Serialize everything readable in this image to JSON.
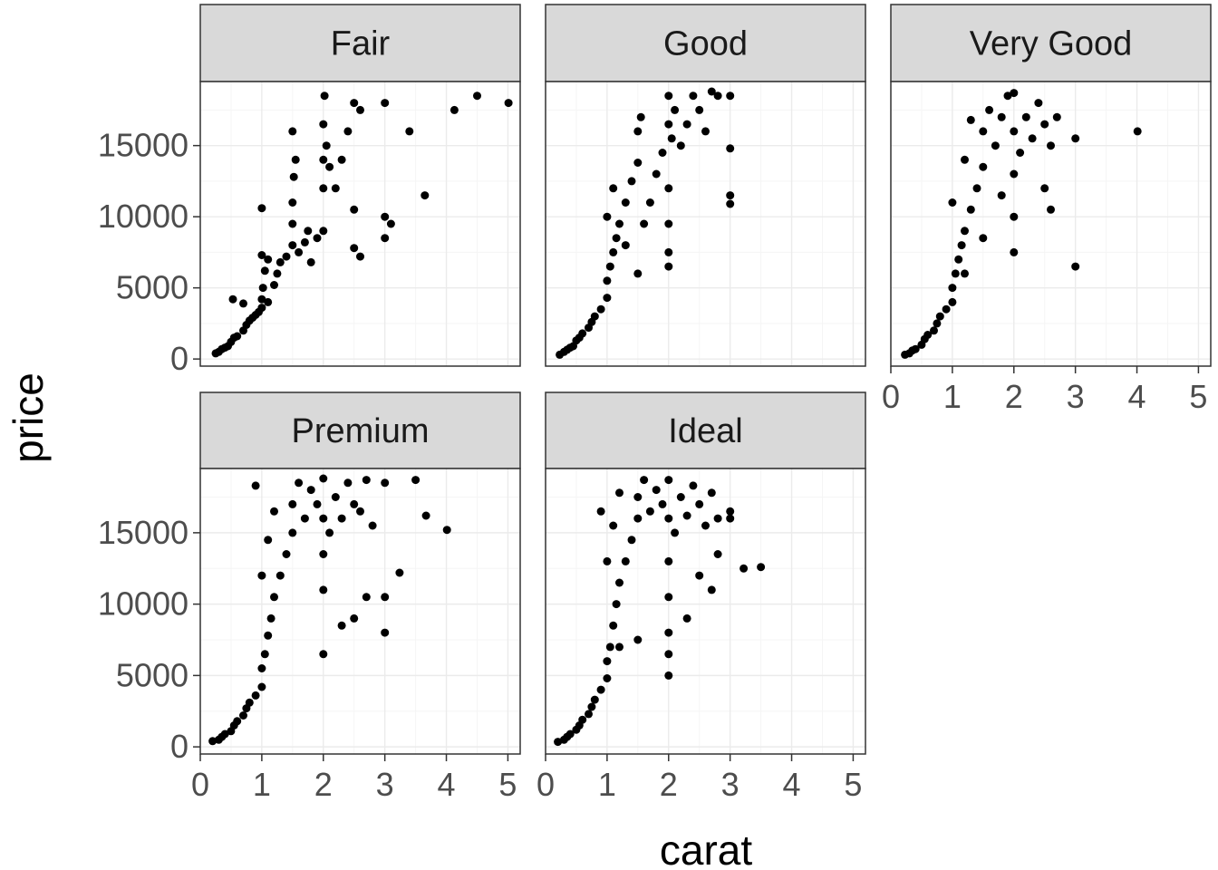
{
  "chart_data": {
    "type": "scatter",
    "xlabel": "carat",
    "ylabel": "price",
    "xlim": [
      0,
      5.2
    ],
    "ylim": [
      -500,
      19500
    ],
    "x_ticks": [
      0,
      1,
      2,
      3,
      4,
      5
    ],
    "y_ticks": [
      0,
      5000,
      10000,
      15000
    ],
    "y_tick_labels": [
      "0",
      "5000",
      "10000",
      "15000"
    ],
    "x_tick_labels": [
      "0",
      "1",
      "2",
      "3",
      "4",
      "5"
    ],
    "grid": true,
    "colors": {
      "point": "#000000",
      "strip_fill": "#d9d9d9",
      "panel_border": "#333333",
      "grid_major": "#ebebeb",
      "grid_minor": "#f5f5f5"
    },
    "panels": [
      {
        "name": "Fair",
        "points": [
          [
            0.25,
            400
          ],
          [
            0.3,
            500
          ],
          [
            0.35,
            700
          ],
          [
            0.4,
            800
          ],
          [
            0.45,
            900
          ],
          [
            0.5,
            1200
          ],
          [
            0.55,
            1500
          ],
          [
            0.6,
            1600
          ],
          [
            0.7,
            2000
          ],
          [
            0.75,
            2400
          ],
          [
            0.8,
            2700
          ],
          [
            0.85,
            2900
          ],
          [
            0.9,
            3100
          ],
          [
            0.95,
            3300
          ],
          [
            1.0,
            3600
          ],
          [
            1.0,
            4200
          ],
          [
            1.02,
            5000
          ],
          [
            1.05,
            6200
          ],
          [
            1.1,
            7000
          ],
          [
            1.1,
            4000
          ],
          [
            1.2,
            5200
          ],
          [
            1.25,
            6000
          ],
          [
            1.3,
            6800
          ],
          [
            1.4,
            7200
          ],
          [
            1.5,
            8000
          ],
          [
            1.5,
            9500
          ],
          [
            1.5,
            11000
          ],
          [
            1.52,
            12800
          ],
          [
            1.55,
            14000
          ],
          [
            1.5,
            16000
          ],
          [
            1.6,
            7500
          ],
          [
            1.7,
            8200
          ],
          [
            1.75,
            9000
          ],
          [
            1.8,
            6800
          ],
          [
            1.9,
            8500
          ],
          [
            2.0,
            9000
          ],
          [
            2.0,
            12000
          ],
          [
            2.0,
            14000
          ],
          [
            2.0,
            16500
          ],
          [
            2.02,
            18500
          ],
          [
            2.05,
            15000
          ],
          [
            2.1,
            13500
          ],
          [
            2.2,
            12000
          ],
          [
            2.3,
            14000
          ],
          [
            2.4,
            16000
          ],
          [
            2.5,
            18000
          ],
          [
            2.5,
            10500
          ],
          [
            2.6,
            17500
          ],
          [
            3.0,
            18000
          ],
          [
            3.0,
            10000
          ],
          [
            3.1,
            9500
          ],
          [
            3.4,
            16000
          ],
          [
            3.65,
            11500
          ],
          [
            4.13,
            17500
          ],
          [
            4.5,
            18500
          ],
          [
            5.01,
            18000
          ],
          [
            0.53,
            4200
          ],
          [
            0.7,
            3900
          ],
          [
            1.0,
            10600
          ],
          [
            1.0,
            7300
          ],
          [
            2.5,
            7800
          ],
          [
            2.6,
            7200
          ],
          [
            3.0,
            8500
          ]
        ]
      },
      {
        "name": "Good",
        "points": [
          [
            0.23,
            300
          ],
          [
            0.3,
            500
          ],
          [
            0.35,
            650
          ],
          [
            0.4,
            800
          ],
          [
            0.45,
            900
          ],
          [
            0.5,
            1300
          ],
          [
            0.55,
            1500
          ],
          [
            0.6,
            1800
          ],
          [
            0.7,
            2200
          ],
          [
            0.75,
            2600
          ],
          [
            0.8,
            3000
          ],
          [
            0.9,
            3500
          ],
          [
            1.0,
            4300
          ],
          [
            1.0,
            5500
          ],
          [
            1.05,
            6500
          ],
          [
            1.1,
            7500
          ],
          [
            1.15,
            8500
          ],
          [
            1.2,
            9500
          ],
          [
            1.3,
            11000
          ],
          [
            1.4,
            12500
          ],
          [
            1.5,
            13800
          ],
          [
            1.5,
            16000
          ],
          [
            1.55,
            17000
          ],
          [
            1.0,
            10000
          ],
          [
            1.1,
            12000
          ],
          [
            1.3,
            8000
          ],
          [
            1.5,
            6000
          ],
          [
            1.6,
            9500
          ],
          [
            1.7,
            11000
          ],
          [
            1.8,
            13000
          ],
          [
            1.9,
            14500
          ],
          [
            2.0,
            16500
          ],
          [
            2.0,
            18500
          ],
          [
            2.0,
            12000
          ],
          [
            2.0,
            9500
          ],
          [
            2.05,
            15500
          ],
          [
            2.1,
            17500
          ],
          [
            2.2,
            15000
          ],
          [
            2.3,
            16500
          ],
          [
            2.4,
            18500
          ],
          [
            2.5,
            17500
          ],
          [
            2.6,
            16000
          ],
          [
            2.7,
            18800
          ],
          [
            2.8,
            18500
          ],
          [
            3.0,
            18500
          ],
          [
            3.0,
            14800
          ],
          [
            3.0,
            11500
          ],
          [
            3.0,
            10900
          ],
          [
            2.0,
            6500
          ],
          [
            2.0,
            7500
          ]
        ]
      },
      {
        "name": "Very Good",
        "points": [
          [
            0.23,
            300
          ],
          [
            0.3,
            400
          ],
          [
            0.35,
            600
          ],
          [
            0.4,
            700
          ],
          [
            0.5,
            1000
          ],
          [
            0.55,
            1400
          ],
          [
            0.6,
            1700
          ],
          [
            0.7,
            2000
          ],
          [
            0.75,
            2500
          ],
          [
            0.8,
            3000
          ],
          [
            0.9,
            3500
          ],
          [
            1.0,
            4000
          ],
          [
            1.0,
            5000
          ],
          [
            1.05,
            6000
          ],
          [
            1.1,
            7000
          ],
          [
            1.15,
            8000
          ],
          [
            1.2,
            9000
          ],
          [
            1.3,
            10500
          ],
          [
            1.4,
            12000
          ],
          [
            1.5,
            13500
          ],
          [
            1.5,
            16000
          ],
          [
            1.6,
            17500
          ],
          [
            1.7,
            15000
          ],
          [
            1.8,
            17000
          ],
          [
            1.9,
            18500
          ],
          [
            2.0,
            18700
          ],
          [
            2.0,
            16000
          ],
          [
            2.0,
            13000
          ],
          [
            2.0,
            10000
          ],
          [
            2.1,
            14500
          ],
          [
            2.2,
            17000
          ],
          [
            2.3,
            15500
          ],
          [
            2.4,
            18000
          ],
          [
            2.5,
            16500
          ],
          [
            2.6,
            15000
          ],
          [
            2.7,
            17000
          ],
          [
            2.5,
            12000
          ],
          [
            2.6,
            10500
          ],
          [
            3.0,
            15500
          ],
          [
            3.0,
            6500
          ],
          [
            4.01,
            16000
          ],
          [
            1.0,
            11000
          ],
          [
            1.2,
            14000
          ],
          [
            1.3,
            16800
          ],
          [
            1.8,
            11500
          ],
          [
            2.0,
            7500
          ],
          [
            1.5,
            8500
          ],
          [
            1.2,
            6000
          ]
        ]
      },
      {
        "name": "Premium",
        "points": [
          [
            0.2,
            400
          ],
          [
            0.3,
            500
          ],
          [
            0.35,
            700
          ],
          [
            0.4,
            900
          ],
          [
            0.5,
            1100
          ],
          [
            0.55,
            1500
          ],
          [
            0.6,
            1800
          ],
          [
            0.7,
            2200
          ],
          [
            0.75,
            2700
          ],
          [
            0.8,
            3100
          ],
          [
            0.9,
            3600
          ],
          [
            1.0,
            4200
          ],
          [
            1.0,
            5500
          ],
          [
            1.05,
            6500
          ],
          [
            1.1,
            7800
          ],
          [
            1.15,
            9000
          ],
          [
            1.2,
            10500
          ],
          [
            1.3,
            12000
          ],
          [
            1.4,
            13500
          ],
          [
            1.5,
            15000
          ],
          [
            1.5,
            17000
          ],
          [
            1.6,
            18500
          ],
          [
            1.7,
            16000
          ],
          [
            1.8,
            18000
          ],
          [
            1.9,
            17000
          ],
          [
            2.0,
            18800
          ],
          [
            2.0,
            16000
          ],
          [
            2.0,
            13500
          ],
          [
            2.0,
            11000
          ],
          [
            2.1,
            15000
          ],
          [
            2.2,
            17500
          ],
          [
            2.3,
            16000
          ],
          [
            2.4,
            18500
          ],
          [
            2.5,
            17000
          ],
          [
            2.6,
            16500
          ],
          [
            2.7,
            18700
          ],
          [
            2.8,
            15500
          ],
          [
            3.0,
            18500
          ],
          [
            3.0,
            10500
          ],
          [
            3.0,
            8000
          ],
          [
            3.5,
            18700
          ],
          [
            3.67,
            16200
          ],
          [
            4.01,
            15200
          ],
          [
            3.24,
            12200
          ],
          [
            1.0,
            12000
          ],
          [
            1.1,
            14500
          ],
          [
            1.2,
            16500
          ],
          [
            0.9,
            18300
          ],
          [
            2.5,
            9000
          ],
          [
            2.7,
            10500
          ],
          [
            2.0,
            6500
          ],
          [
            2.3,
            8500
          ]
        ]
      },
      {
        "name": "Ideal",
        "points": [
          [
            0.2,
            350
          ],
          [
            0.3,
            500
          ],
          [
            0.35,
            700
          ],
          [
            0.4,
            900
          ],
          [
            0.5,
            1200
          ],
          [
            0.55,
            1500
          ],
          [
            0.6,
            1900
          ],
          [
            0.7,
            2300
          ],
          [
            0.75,
            2800
          ],
          [
            0.8,
            3300
          ],
          [
            0.9,
            4000
          ],
          [
            1.0,
            4800
          ],
          [
            1.0,
            6000
          ],
          [
            1.05,
            7000
          ],
          [
            1.1,
            8500
          ],
          [
            1.15,
            10000
          ],
          [
            1.2,
            11500
          ],
          [
            1.3,
            13000
          ],
          [
            1.4,
            14500
          ],
          [
            1.5,
            16000
          ],
          [
            1.5,
            17500
          ],
          [
            1.6,
            18700
          ],
          [
            1.7,
            16500
          ],
          [
            1.8,
            18000
          ],
          [
            1.9,
            17000
          ],
          [
            2.0,
            18700
          ],
          [
            2.0,
            16000
          ],
          [
            2.0,
            13000
          ],
          [
            2.0,
            10500
          ],
          [
            2.1,
            15000
          ],
          [
            2.2,
            17500
          ],
          [
            2.3,
            16200
          ],
          [
            2.4,
            18300
          ],
          [
            2.5,
            17000
          ],
          [
            2.6,
            15500
          ],
          [
            2.7,
            17800
          ],
          [
            2.8,
            16000
          ],
          [
            3.0,
            16500
          ],
          [
            3.0,
            16000
          ],
          [
            3.22,
            12500
          ],
          [
            3.5,
            12600
          ],
          [
            2.8,
            13500
          ],
          [
            2.5,
            12000
          ],
          [
            2.7,
            11000
          ],
          [
            1.0,
            13000
          ],
          [
            1.1,
            15500
          ],
          [
            1.2,
            17800
          ],
          [
            0.9,
            16500
          ],
          [
            2.0,
            6500
          ],
          [
            2.0,
            8000
          ],
          [
            2.3,
            9000
          ],
          [
            2.0,
            5000
          ],
          [
            1.5,
            7500
          ],
          [
            1.2,
            7000
          ]
        ]
      }
    ]
  }
}
